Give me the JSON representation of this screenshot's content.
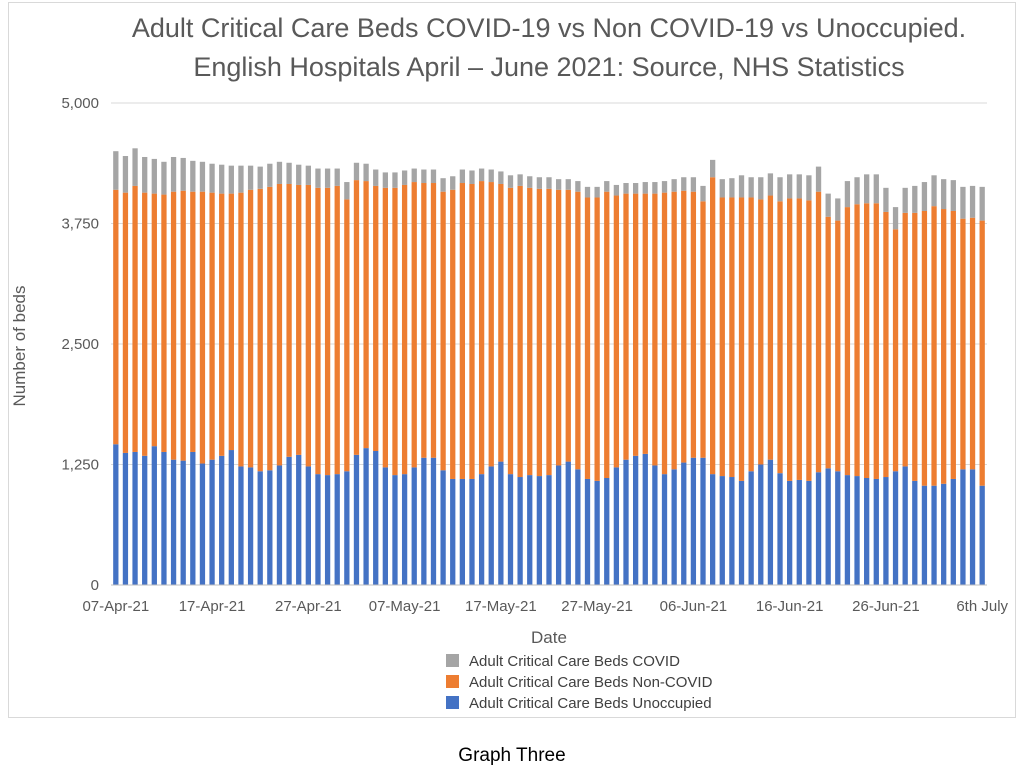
{
  "chart_data": {
    "type": "bar",
    "stacked": true,
    "title": "Adult Critical Care Beds COVID-19 vs Non COVID-19 vs Unoccupied.",
    "subtitle": "English Hospitals April – June 2021: Source, NHS Statistics",
    "xlabel": "Date",
    "ylabel": "Number of beds",
    "ylim": [
      0,
      5000
    ],
    "yticks": [
      "0",
      "1,250",
      "2,500",
      "3,750",
      "5,000"
    ],
    "ytick_values": [
      0,
      1250,
      2500,
      3750,
      5000
    ],
    "grid": true,
    "legend_position": "bottom",
    "xtick_labels": [
      "07-Apr-21",
      "17-Apr-21",
      "27-Apr-21",
      "07-May-21",
      "17-May-21",
      "27-May-21",
      "06-Jun-21",
      "16-Jun-21",
      "26-Jun-21",
      "6th July"
    ],
    "xtick_indices": [
      0,
      10,
      20,
      30,
      40,
      50,
      60,
      70,
      80,
      90
    ],
    "n_days": 91,
    "series": [
      {
        "name": "Adult Critical Care Beds Unoccupied",
        "color": "#4472c4",
        "values": [
          1460,
          1370,
          1380,
          1340,
          1440,
          1380,
          1300,
          1290,
          1380,
          1260,
          1300,
          1340,
          1400,
          1230,
          1220,
          1180,
          1190,
          1240,
          1330,
          1350,
          1230,
          1150,
          1140,
          1150,
          1180,
          1350,
          1420,
          1390,
          1220,
          1140,
          1150,
          1220,
          1320,
          1320,
          1190,
          1100,
          1100,
          1100,
          1150,
          1230,
          1280,
          1150,
          1120,
          1140,
          1130,
          1140,
          1240,
          1280,
          1200,
          1100,
          1080,
          1110,
          1220,
          1300,
          1340,
          1360,
          1240,
          1150,
          1200,
          1270,
          1320,
          1320,
          1150,
          1130,
          1120,
          1080,
          1180,
          1250,
          1300,
          1160,
          1080,
          1090,
          1080,
          1170,
          1210,
          1180,
          1140,
          1130,
          1110,
          1100,
          1120,
          1180,
          1230,
          1080,
          1030,
          1030,
          1050,
          1100,
          1200,
          1200,
          1030
        ]
      },
      {
        "name": "Adult Critical Care Beds Non-COVID",
        "color": "#ed7d31",
        "values": [
          2640,
          2700,
          2760,
          2730,
          2620,
          2670,
          2780,
          2800,
          2700,
          2820,
          2770,
          2720,
          2660,
          2840,
          2880,
          2930,
          2940,
          2920,
          2830,
          2800,
          2920,
          2970,
          2980,
          2990,
          2820,
          2850,
          2770,
          2750,
          2900,
          2980,
          3000,
          2960,
          2850,
          2850,
          2890,
          3000,
          3070,
          3060,
          3040,
          2950,
          2880,
          2970,
          3020,
          2980,
          2980,
          2970,
          2860,
          2820,
          2880,
          2920,
          2940,
          2970,
          2820,
          2760,
          2720,
          2700,
          2820,
          2920,
          2880,
          2820,
          2760,
          2660,
          3080,
          2890,
          2900,
          2940,
          2840,
          2750,
          2740,
          2820,
          2930,
          2920,
          2910,
          2910,
          2610,
          2600,
          2780,
          2820,
          2850,
          2860,
          2750,
          2510,
          2630,
          2780,
          2850,
          2900,
          2850,
          2780,
          2600,
          2610,
          2750
        ]
      },
      {
        "name": "Adult Critical Care Beds COVID",
        "color": "#a5a5a5",
        "values": [
          400,
          380,
          390,
          370,
          360,
          340,
          360,
          340,
          320,
          310,
          300,
          300,
          290,
          280,
          250,
          230,
          240,
          230,
          220,
          210,
          200,
          200,
          200,
          180,
          180,
          180,
          180,
          170,
          160,
          160,
          150,
          140,
          140,
          140,
          140,
          140,
          140,
          140,
          130,
          130,
          130,
          130,
          120,
          120,
          120,
          120,
          110,
          110,
          110,
          110,
          110,
          110,
          110,
          110,
          110,
          120,
          120,
          120,
          130,
          140,
          150,
          160,
          180,
          190,
          200,
          230,
          210,
          230,
          230,
          250,
          250,
          250,
          260,
          260,
          240,
          230,
          270,
          280,
          300,
          300,
          250,
          230,
          260,
          280,
          300,
          320,
          310,
          320,
          330,
          330,
          350
        ]
      }
    ]
  },
  "caption": "Graph Three"
}
